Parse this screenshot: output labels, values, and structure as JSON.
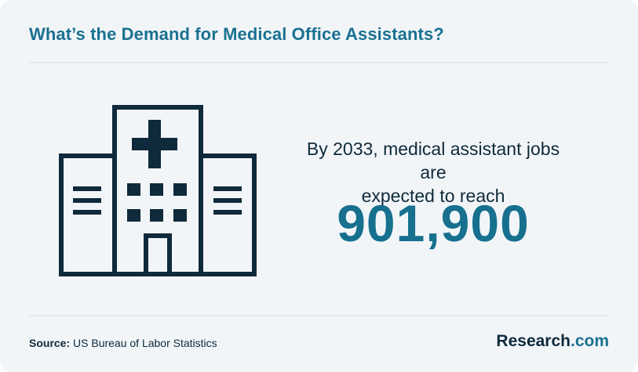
{
  "header": {
    "title": "What’s the Demand for Medical Office Assistants?"
  },
  "stat": {
    "line1": "By 2033, medical assistant jobs are",
    "line2": "expected to reach",
    "value": "901,900"
  },
  "footer": {
    "source_label": "Source:",
    "source_text": " US Bureau of Labor Statistics",
    "brand_name": "Research",
    "brand_tld": ".com"
  },
  "colors": {
    "background": "#f2f5f8",
    "accent": "#1a7191",
    "ink": "#0e2a3b"
  },
  "icons": {
    "illustration": "hospital-icon"
  }
}
